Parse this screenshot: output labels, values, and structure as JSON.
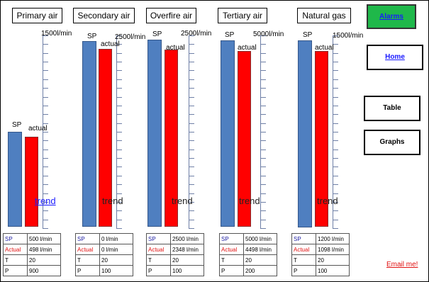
{
  "panels": [
    {
      "id": "primary",
      "title": "Primary air",
      "max_label": "1500l/min",
      "sp_label": "SP",
      "actual_label": "actual",
      "trend_label": "trend",
      "trend_is_link": true,
      "rows": [
        [
          "SP",
          "500 l/min"
        ],
        [
          "Actual",
          "498 l/min"
        ],
        [
          "T",
          "20"
        ],
        [
          "P",
          "900"
        ]
      ]
    },
    {
      "id": "secondary",
      "title": "Secondary air",
      "max_label": "2500l/min",
      "sp_label": "SP",
      "actual_label": "actual",
      "trend_label": "trend",
      "trend_is_link": false,
      "rows": [
        [
          "SP",
          "0 l/min"
        ],
        [
          "Actual",
          "0 l/min"
        ],
        [
          "T",
          "20"
        ],
        [
          "P",
          "100"
        ]
      ]
    },
    {
      "id": "overfire",
      "title": "Overfire air",
      "max_label": "2500l/min",
      "sp_label": "SP",
      "actual_label": "actual",
      "trend_label": "trend",
      "trend_is_link": false,
      "rows": [
        [
          "SP",
          "2500 l/min"
        ],
        [
          "Actual",
          "2348 l/min"
        ],
        [
          "T",
          "20"
        ],
        [
          "P",
          "100"
        ]
      ]
    },
    {
      "id": "tertiary",
      "title": "Tertiary air",
      "max_label": "5000l/min",
      "sp_label": "SP",
      "actual_label": "actual",
      "trend_label": "trend",
      "trend_is_link": false,
      "rows": [
        [
          "SP",
          "5000 l/min"
        ],
        [
          "Actual",
          "4498 l/min"
        ],
        [
          "T",
          "20"
        ],
        [
          "P",
          "200"
        ]
      ]
    },
    {
      "id": "natural-gas",
      "title": "Natural gas",
      "max_label": "1500l/min",
      "sp_label": "SP",
      "actual_label": "actual",
      "trend_label": "trend",
      "trend_is_link": false,
      "rows": [
        [
          "SP",
          "1200 l/min"
        ],
        [
          "Actual",
          "1098 l/min"
        ],
        [
          "T",
          "20"
        ],
        [
          "P",
          "100"
        ]
      ]
    }
  ],
  "nav": {
    "alarms": "Alarms",
    "home": "Home",
    "table": "Table",
    "graphs": "Graphs"
  },
  "email_link": "Email me!",
  "colors": {
    "sp_bar": "#4f7fc0",
    "actual_bar": "#ff0000",
    "alarm_button": "#1fb84a",
    "sp_text": "#1a1aa0",
    "actual_text": "#e01010",
    "link": "#1a1aff"
  }
}
